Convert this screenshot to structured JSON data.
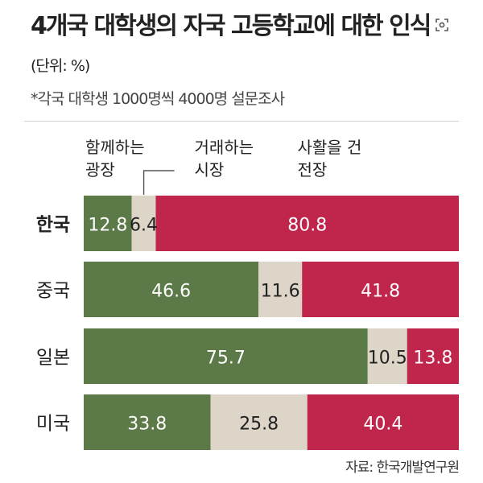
{
  "title": "4개국 대학생의 자국 고등학교에 대한 인식",
  "unit": "(단위: %)",
  "subtitle": "*각국 대학생 1000명씩 4000명 설문조사",
  "source": "자료: 한국개발연구원",
  "lens_icon": "lens-search-icon",
  "colors": {
    "plaza": "#5b7a47",
    "market": "#ddd5c8",
    "battlefield": "#c0264b",
    "text_light": "#ffffff",
    "text_dark": "#222222"
  },
  "chart_data": {
    "type": "bar",
    "stacked": true,
    "orientation": "horizontal",
    "percent": true,
    "categories": [
      "한국",
      "중국",
      "일본",
      "미국"
    ],
    "series": [
      {
        "name": "함께하는 광장",
        "values": [
          12.8,
          46.6,
          75.7,
          33.8
        ]
      },
      {
        "name": "거래하는 시장",
        "values": [
          6.4,
          11.6,
          10.5,
          25.8
        ]
      },
      {
        "name": "사활을 건 전장",
        "values": [
          80.8,
          41.8,
          13.8,
          40.4
        ]
      }
    ],
    "legend_placement": "top, annotated above first bar",
    "xlim": [
      0,
      100
    ]
  }
}
